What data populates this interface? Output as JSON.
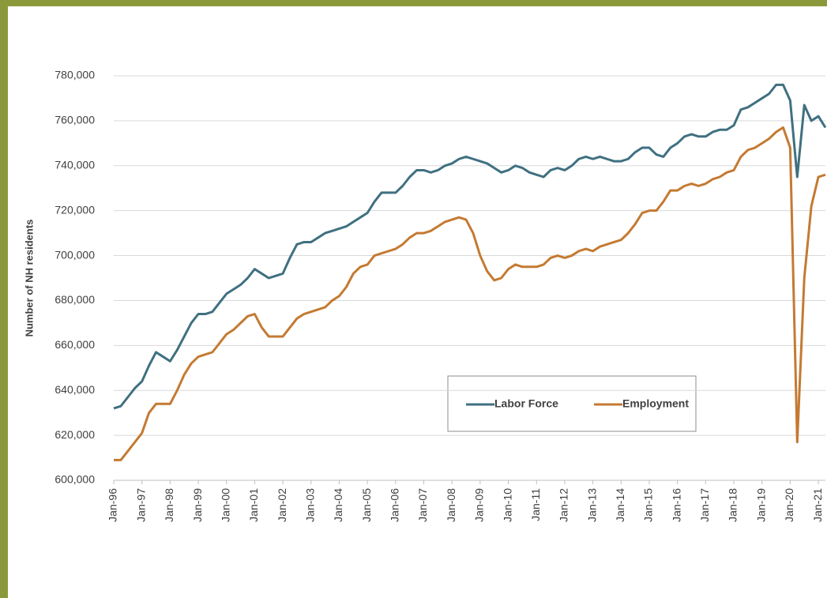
{
  "chart_data": {
    "type": "line",
    "y_label": "Number of NH residents",
    "categories": [
      "Jan-96",
      null,
      null,
      null,
      "Jan-97",
      null,
      null,
      null,
      "Jan-98",
      null,
      null,
      null,
      "Jan-99",
      null,
      null,
      null,
      "Jan-00",
      null,
      null,
      null,
      "Jan-01",
      null,
      null,
      null,
      "Jan-02",
      null,
      null,
      null,
      "Jan-03",
      null,
      null,
      null,
      "Jan-04",
      null,
      null,
      null,
      "Jan-05",
      null,
      null,
      null,
      "Jan-06",
      null,
      null,
      null,
      "Jan-07",
      null,
      null,
      null,
      "Jan-08",
      null,
      null,
      null,
      "Jan-09",
      null,
      null,
      null,
      "Jan-10",
      null,
      null,
      null,
      "Jan-11",
      null,
      null,
      null,
      "Jan-12",
      null,
      null,
      null,
      "Jan-13",
      null,
      null,
      null,
      "Jan-14",
      null,
      null,
      null,
      "Jan-15",
      null,
      null,
      null,
      "Jan-16",
      null,
      null,
      null,
      "Jan-17",
      null,
      null,
      null,
      "Jan-18",
      null,
      null,
      null,
      "Jan-19",
      null,
      null,
      null,
      "Jan-20",
      null,
      null,
      null,
      "Jan-21",
      null
    ],
    "series": [
      {
        "name": "Labor Force",
        "color": "#3f7080",
        "values": [
          632000,
          633000,
          637000,
          641000,
          644000,
          651000,
          657000,
          655000,
          653000,
          658000,
          664000,
          670000,
          674000,
          674000,
          675000,
          679000,
          683000,
          685000,
          687000,
          690000,
          694000,
          692000,
          690000,
          691000,
          692000,
          699000,
          705000,
          706000,
          706000,
          708000,
          710000,
          711000,
          712000,
          713000,
          715000,
          717000,
          719000,
          724000,
          728000,
          728000,
          728000,
          731000,
          735000,
          738000,
          738000,
          737000,
          738000,
          740000,
          741000,
          743000,
          744000,
          743000,
          742000,
          741000,
          739000,
          737000,
          738000,
          740000,
          739000,
          737000,
          736000,
          735000,
          738000,
          739000,
          738000,
          740000,
          743000,
          744000,
          743000,
          744000,
          743000,
          742000,
          742000,
          743000,
          746000,
          748000,
          748000,
          745000,
          744000,
          748000,
          750000,
          753000,
          754000,
          753000,
          753000,
          755000,
          756000,
          756000,
          758000,
          765000,
          766000,
          768000,
          770000,
          772000,
          776000,
          776000,
          769000,
          735000,
          767000,
          760000,
          762000,
          757000
        ]
      },
      {
        "name": "Employment",
        "color": "#c47a32",
        "values": [
          609000,
          609000,
          613000,
          617000,
          621000,
          630000,
          634000,
          634000,
          634000,
          640000,
          647000,
          652000,
          655000,
          656000,
          657000,
          661000,
          665000,
          667000,
          670000,
          673000,
          674000,
          668000,
          664000,
          664000,
          664000,
          668000,
          672000,
          674000,
          675000,
          676000,
          677000,
          680000,
          682000,
          686000,
          692000,
          695000,
          696000,
          700000,
          701000,
          702000,
          703000,
          705000,
          708000,
          710000,
          710000,
          711000,
          713000,
          715000,
          716000,
          717000,
          716000,
          710000,
          700000,
          693000,
          689000,
          690000,
          694000,
          696000,
          695000,
          695000,
          695000,
          696000,
          699000,
          700000,
          699000,
          700000,
          702000,
          703000,
          702000,
          704000,
          705000,
          706000,
          707000,
          710000,
          714000,
          719000,
          720000,
          720000,
          724000,
          729000,
          729000,
          731000,
          732000,
          731000,
          732000,
          734000,
          735000,
          737000,
          738000,
          744000,
          747000,
          748000,
          750000,
          752000,
          755000,
          757000,
          748000,
          617000,
          690000,
          722000,
          735000,
          736000
        ]
      }
    ],
    "ylim": [
      600000,
      780000
    ],
    "yticks": [
      {
        "value": 600000,
        "label": "600,000"
      },
      {
        "value": 620000,
        "label": "620,000"
      },
      {
        "value": 640000,
        "label": "640,000"
      },
      {
        "value": 660000,
        "label": "660,000"
      },
      {
        "value": 680000,
        "label": "680,000"
      },
      {
        "value": 700000,
        "label": "700,000"
      },
      {
        "value": 720000,
        "label": "720,000"
      },
      {
        "value": 740000,
        "label": "740,000"
      },
      {
        "value": 760000,
        "label": "760,000"
      },
      {
        "value": 780000,
        "label": "780,000"
      }
    ],
    "grid": true
  }
}
